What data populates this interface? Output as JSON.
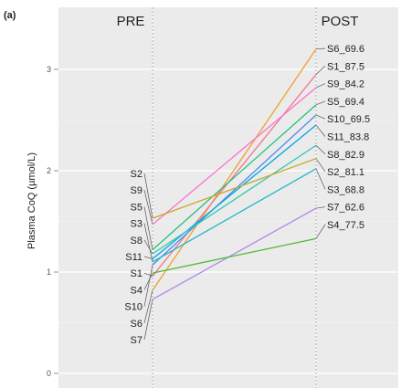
{
  "chart_data": {
    "type": "line",
    "panel_label": "(a)",
    "x_categories": [
      "PRE",
      "POST"
    ],
    "ylabel": "Plasma CoQ (µmol/L)",
    "ylim": [
      -0.1,
      3.45
    ],
    "yticks": [
      "0",
      "1",
      "2",
      "3"
    ],
    "grid": true,
    "legend": "none",
    "series": [
      {
        "pre_label": "S6",
        "post_label": "S6_69.6",
        "color": "#f0a030",
        "values": [
          0.82,
          3.2
        ]
      },
      {
        "pre_label": "S1",
        "post_label": "S1_87.5",
        "color": "#f07890",
        "values": [
          0.96,
          2.95
        ]
      },
      {
        "pre_label": "S9",
        "post_label": "S9_84.2",
        "color": "#ff70d0",
        "values": [
          1.47,
          2.82
        ]
      },
      {
        "pre_label": "S5",
        "post_label": "S5_69.4",
        "color": "#20c080",
        "values": [
          1.22,
          2.65
        ]
      },
      {
        "pre_label": "S10",
        "post_label": "S10_69.5",
        "color": "#5088f0",
        "values": [
          1.07,
          2.55
        ]
      },
      {
        "pre_label": "S11",
        "post_label": "S11_83.8",
        "color": "#00a8e0",
        "values": [
          1.13,
          2.45
        ]
      },
      {
        "pre_label": "S8",
        "post_label": "S8_82.9",
        "color": "#30c8b0",
        "values": [
          1.18,
          2.25
        ]
      },
      {
        "pre_label": "S2",
        "post_label": "S2_81.1",
        "color": "#c8a820",
        "values": [
          1.53,
          2.12
        ]
      },
      {
        "pre_label": "S3",
        "post_label": "S3_68.8",
        "color": "#20b8c8",
        "values": [
          1.1,
          2.02
        ]
      },
      {
        "pre_label": "S7",
        "post_label": "S7_62.6",
        "color": "#b088e8",
        "values": [
          0.73,
          1.63
        ]
      },
      {
        "pre_label": "S4",
        "post_label": "S4_77.5",
        "color": "#50b838",
        "values": [
          0.99,
          1.33
        ]
      }
    ],
    "pre_label_order": [
      "S2",
      "S9",
      "S5",
      "S3",
      "S8",
      "S11",
      "S1",
      "S4",
      "S10",
      "S6",
      "S7"
    ],
    "post_label_order": [
      "S6_69.6",
      "S1_87.5",
      "S9_84.2",
      "S5_69.4",
      "S10_69.5",
      "S11_83.8",
      "S8_82.9",
      "S2_81.1",
      "S3_68.8",
      "S7_62.6",
      "S4_77.5"
    ]
  }
}
